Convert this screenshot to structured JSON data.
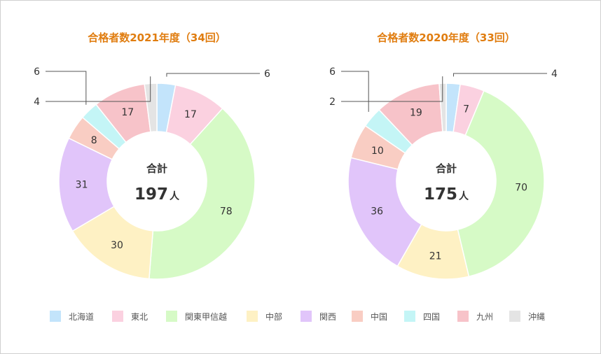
{
  "colors": {
    "title": "#e07d10",
    "leader": "#555555",
    "hokkaido": "#c3e4fb",
    "tohoku": "#fbd1e0",
    "kanto": "#d6fac6",
    "chubu": "#fef1c4",
    "kansai": "#e1c5fa",
    "chugoku": "#f9cdc3",
    "shikoku": "#c4f5f6",
    "kyushu": "#f7c3c9",
    "okinawa": "#e4e4e4"
  },
  "center_label": "合計",
  "center_unit": "人",
  "legend": [
    {
      "key": "hokkaido",
      "label": "北海道"
    },
    {
      "key": "tohoku",
      "label": "東北"
    },
    {
      "key": "kanto",
      "label": "関東甲信越"
    },
    {
      "key": "chubu",
      "label": "中部"
    },
    {
      "key": "kansai",
      "label": "関西"
    },
    {
      "key": "chugoku",
      "label": "中国"
    },
    {
      "key": "shikoku",
      "label": "四国"
    },
    {
      "key": "kyushu",
      "label": "九州"
    },
    {
      "key": "okinawa",
      "label": "沖縄"
    }
  ],
  "chart_data": [
    {
      "type": "pie",
      "title": "合格者数2021年度（34回）",
      "total": 197,
      "categories": [
        "北海道",
        "東北",
        "関東甲信越",
        "中部",
        "関西",
        "中国",
        "四国",
        "九州",
        "沖縄"
      ],
      "values": [
        6,
        17,
        78,
        30,
        31,
        8,
        6,
        17,
        4
      ]
    },
    {
      "type": "pie",
      "title": "合格者数2020年度（33回）",
      "total": 175,
      "categories": [
        "北海道",
        "東北",
        "関東甲信越",
        "中部",
        "関西",
        "中国",
        "四国",
        "九州",
        "沖縄"
      ],
      "values": [
        4,
        7,
        70,
        21,
        36,
        10,
        6,
        19,
        2
      ]
    }
  ]
}
